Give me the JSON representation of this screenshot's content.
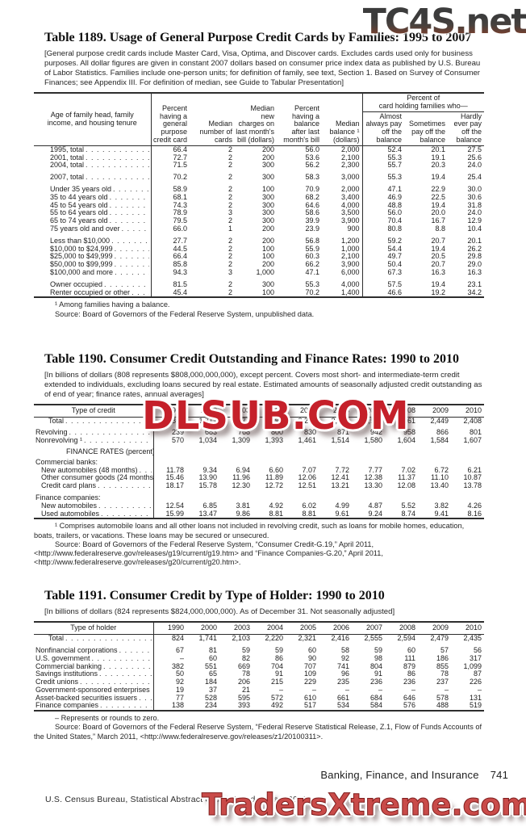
{
  "watermarks": {
    "top": "TC4S.net",
    "middle": "DLSUB.COM",
    "bottom": "TradersXtreme.com",
    "red": "#c5202a",
    "bottom_red": "#c94b49",
    "top_gradient_start": "#3c3c3c",
    "top_gradient_end": "#8a4d3a"
  },
  "footer": {
    "section": "Banking, Finance, and Insurance",
    "page_number": "741",
    "credit": "U.S. Census Bureau, Statistical Abstract of the United States: 2012"
  },
  "t1189": {
    "title": "Table 1189. Usage of General Purpose Credit Cards by Families: 1995 to 2007",
    "note": "[General purpose credit cards include Master Card, Visa, Optima, and Discover cards. Excludes cards used only for business purposes. All dollar figures are given in constant 2007 dollars based on consumer price index data as published by U.S. Bureau of Labor Statistics. Families include one-person units; for definition of family, see text, Section 1. Based on Survey of Consumer Finances; see Appendix III. For definition of median, see Guide to Tabular Presentation]",
    "stub_header": "Age of family head, family income, and housing tenure",
    "col_headers": [
      "Percent having a general purpose credit card",
      "Median number of cards",
      "Median new charges on last month's bill (dollars)",
      "Percent having a balance after last month's bill",
      "Median balance ¹ (dollars)"
    ],
    "group_header_line1": "Percent of",
    "group_header_line2": "card holding families who—",
    "group_cols": [
      "Almost always pay off the balance",
      "Sometimes pay off the balance",
      "Hardly ever pay off the balance"
    ],
    "ncols": 8,
    "dividers": [
      0,
      5
    ],
    "defInd": 3,
    "rows": [
      {
        "label": "1995, total",
        "values": [
          "66.4",
          "2",
          "200",
          "56.0",
          "2,000",
          "52.4",
          "20.1",
          "27.5"
        ]
      },
      {
        "label": "2001, total",
        "values": [
          "72.7",
          "2",
          "200",
          "53.6",
          "2,100",
          "55.3",
          "19.1",
          "25.6"
        ]
      },
      {
        "label": "2004, total",
        "values": [
          "71.5",
          "2",
          "300",
          "56.2",
          "2,300",
          "55.7",
          "20.3",
          "24.0"
        ]
      },
      {
        "label": "2007, total",
        "bold": true,
        "gap": true,
        "values": [
          "70.2",
          "2",
          "300",
          "58.3",
          "3,000",
          "55.3",
          "19.4",
          "25.4"
        ]
      },
      {
        "label": "Under 35 years old",
        "gap": true,
        "values": [
          "58.9",
          "2",
          "100",
          "70.9",
          "2,000",
          "47.1",
          "22.9",
          "30.0"
        ]
      },
      {
        "label": "35 to 44 years old",
        "values": [
          "68.1",
          "2",
          "300",
          "68.2",
          "3,400",
          "46.9",
          "22.5",
          "30.6"
        ]
      },
      {
        "label": "45 to 54 years old",
        "values": [
          "74.3",
          "2",
          "300",
          "64.6",
          "4,000",
          "48.8",
          "19.4",
          "31.8"
        ]
      },
      {
        "label": "55 to 64 years old",
        "values": [
          "78.9",
          "3",
          "300",
          "58.6",
          "3,500",
          "56.0",
          "20.0",
          "24.0"
        ]
      },
      {
        "label": "65 to 74 years old",
        "values": [
          "79.5",
          "2",
          "300",
          "39.9",
          "3,900",
          "70.4",
          "16.7",
          "12.9"
        ]
      },
      {
        "label": "75 years old and over",
        "values": [
          "66.0",
          "1",
          "200",
          "23.9",
          "900",
          "80.8",
          "8.8",
          "10.4"
        ]
      },
      {
        "label": "Less than $10,000",
        "gap": true,
        "values": [
          "27.7",
          "2",
          "200",
          "56.8",
          "1,200",
          "59.2",
          "20.7",
          "20.1"
        ]
      },
      {
        "label": "$10,000 to $24,999",
        "values": [
          "44.5",
          "2",
          "100",
          "55.9",
          "1,000",
          "54.4",
          "19.4",
          "26.2"
        ]
      },
      {
        "label": "$25,000 to $49,999",
        "values": [
          "66.4",
          "2",
          "100",
          "60.3",
          "2,100",
          "49.7",
          "20.5",
          "29.8"
        ]
      },
      {
        "label": "$50,000 to $99,999",
        "values": [
          "85.8",
          "2",
          "200",
          "66.2",
          "3,900",
          "50.4",
          "20.7",
          "29.0"
        ]
      },
      {
        "label": "$100,000 and more",
        "values": [
          "94.3",
          "3",
          "1,000",
          "47.1",
          "6,000",
          "67.3",
          "16.3",
          "16.3"
        ]
      },
      {
        "label": "Owner occupied",
        "gap": true,
        "values": [
          "81.5",
          "2",
          "300",
          "55.3",
          "4,000",
          "57.5",
          "19.4",
          "23.1"
        ]
      },
      {
        "label": "Renter occupied or other",
        "values": [
          "45.4",
          "2",
          "100",
          "70.2",
          "1,400",
          "46.6",
          "19.2",
          "34.2"
        ]
      }
    ],
    "footnotes": [
      "¹ Among families having a balance.",
      "Source: Board of Governors of the Federal Reserve System, unpublished data."
    ]
  },
  "t1190": {
    "title": "Table 1190. Consumer Credit Outstanding and Finance Rates: 1990 to 2010",
    "note": "[In billions of dollars (808 represents $808,000,000,000), except percent. Covers most short- and intermediate-term credit extended to individuals, excluding loans secured by real estate. Estimated amounts of seasonally adjusted credit outstanding as of end of year; finance rates, annual averages]",
    "stub_header": "Type of credit",
    "years": [
      "1990",
      "2000",
      "2003",
      "2004",
      "2005",
      "2006",
      "2007",
      "2008",
      "2009",
      "2010"
    ],
    "ncols": 10,
    "dividers": [
      0
    ],
    "defInd": 0,
    "rows": [
      {
        "label": "Total",
        "bold": true,
        "indent": 2,
        "values": [
          "808",
          "1,717",
          "2,077",
          "2,193",
          "2,291",
          "2,385",
          "2,522",
          "2,561",
          "2,449",
          "2,408"
        ]
      },
      {
        "label": "Revolving",
        "gap": true,
        "values": [
          "239",
          "683",
          "768",
          "800",
          "830",
          "871",
          "942",
          "958",
          "866",
          "801"
        ]
      },
      {
        "label": "Nonrevolving ¹",
        "values": [
          "570",
          "1,034",
          "1,309",
          "1,393",
          "1,461",
          "1,514",
          "1,580",
          "1,604",
          "1,584",
          "1,607"
        ]
      },
      {
        "label": "FINANCE RATES (percent)",
        "heading": true,
        "gap": true,
        "indent": 4,
        "values": []
      },
      {
        "label": "Commercial banks:",
        "values": []
      },
      {
        "label": "New automobiles (48 months)",
        "indent": 1,
        "values": [
          "11.78",
          "9.34",
          "6.94",
          "6.60",
          "7.07",
          "7.72",
          "7.77",
          "7.02",
          "6.72",
          "6.21"
        ]
      },
      {
        "label": "Other consumer goods (24 months)",
        "indent": 1,
        "values": [
          "15.46",
          "13.90",
          "11.96",
          "11.89",
          "12.06",
          "12.41",
          "12.38",
          "11.37",
          "11.10",
          "10.87"
        ]
      },
      {
        "label": "Credit card plans",
        "indent": 1,
        "values": [
          "18.17",
          "15.78",
          "12.30",
          "12.72",
          "12.51",
          "13.21",
          "13.30",
          "12.08",
          "13.40",
          "13.78"
        ]
      },
      {
        "label": "Finance companies:",
        "gap": true,
        "values": []
      },
      {
        "label": "New automobiles",
        "indent": 1,
        "values": [
          "12.54",
          "6.85",
          "3.81",
          "4.92",
          "6.02",
          "4.99",
          "4.87",
          "5.52",
          "3.82",
          "4.26"
        ]
      },
      {
        "label": "Used automobiles",
        "indent": 1,
        "values": [
          "15.99",
          "13.47",
          "9.86",
          "8.81",
          "8.81",
          "9.61",
          "9.24",
          "8.74",
          "9.41",
          "8.16"
        ]
      }
    ],
    "footnotes": [
      "¹ Comprises automobile loans and all other loans not included in revolving credit, such as loans for mobile homes, education, boats, trailers, or vacations. These loans may be secured or unsecured.",
      "Source: Board of Governors of the Federal Reserve System, “Consumer Credit-G.19,” April 2011, <http://www.federalreserve.gov/releases/g19/current/g19.htm> and “Finance Companies-G.20,” April 2011, <http://www.federalreserve.gov/releases/g20/current/g20.htm>."
    ]
  },
  "t1191": {
    "title": "Table 1191. Consumer Credit by Type of Holder: 1990 to 2010",
    "note": "[In billions of dollars (824 represents $824,000,000,000). As of December 31. Not seasonally adjusted]",
    "stub_header": "Type of holder",
    "years": [
      "1990",
      "2000",
      "2003",
      "2004",
      "2005",
      "2006",
      "2007",
      "2008",
      "2009",
      "2010"
    ],
    "ncols": 10,
    "dividers": [
      0
    ],
    "defInd": 0,
    "rows": [
      {
        "label": "Total",
        "bold": true,
        "indent": 2,
        "values": [
          "824",
          "1,741",
          "2,103",
          "2,220",
          "2,321",
          "2,416",
          "2,555",
          "2,594",
          "2,479",
          "2,435"
        ]
      },
      {
        "label": "Nonfinancial corporations",
        "gap": true,
        "values": [
          "67",
          "81",
          "59",
          "59",
          "60",
          "58",
          "59",
          "60",
          "57",
          "56"
        ]
      },
      {
        "label": "U.S. government",
        "values": [
          "–",
          "60",
          "82",
          "86",
          "90",
          "92",
          "98",
          "111",
          "186",
          "317"
        ]
      },
      {
        "label": "Commercial banking",
        "values": [
          "382",
          "551",
          "669",
          "704",
          "707",
          "741",
          "804",
          "879",
          "855",
          "1,099"
        ]
      },
      {
        "label": "Savings institutions",
        "values": [
          "50",
          "65",
          "78",
          "91",
          "109",
          "96",
          "91",
          "86",
          "78",
          "87"
        ]
      },
      {
        "label": "Credit unions",
        "values": [
          "92",
          "184",
          "206",
          "215",
          "229",
          "235",
          "236",
          "236",
          "237",
          "226"
        ]
      },
      {
        "label": "Government-sponsored enterprises",
        "values": [
          "19",
          "37",
          "21",
          "–",
          "–",
          "–",
          "–",
          "–",
          "–",
          "–"
        ]
      },
      {
        "label": "Asset-backed securities issuers",
        "values": [
          "77",
          "528",
          "595",
          "572",
          "610",
          "661",
          "684",
          "646",
          "578",
          "131"
        ]
      },
      {
        "label": "Finance companies",
        "values": [
          "138",
          "234",
          "393",
          "492",
          "517",
          "534",
          "584",
          "576",
          "488",
          "519"
        ]
      }
    ],
    "footnotes": [
      "– Represents or rounds to zero.",
      "Source: Board of Governors of the Federal Reserve System, “Federal Reserve Statistical Release, Z.1, Flow of Funds Accounts of the United States,” March 2011, <http://www.federalreserve.gov/releases/z1/20100311>."
    ]
  }
}
